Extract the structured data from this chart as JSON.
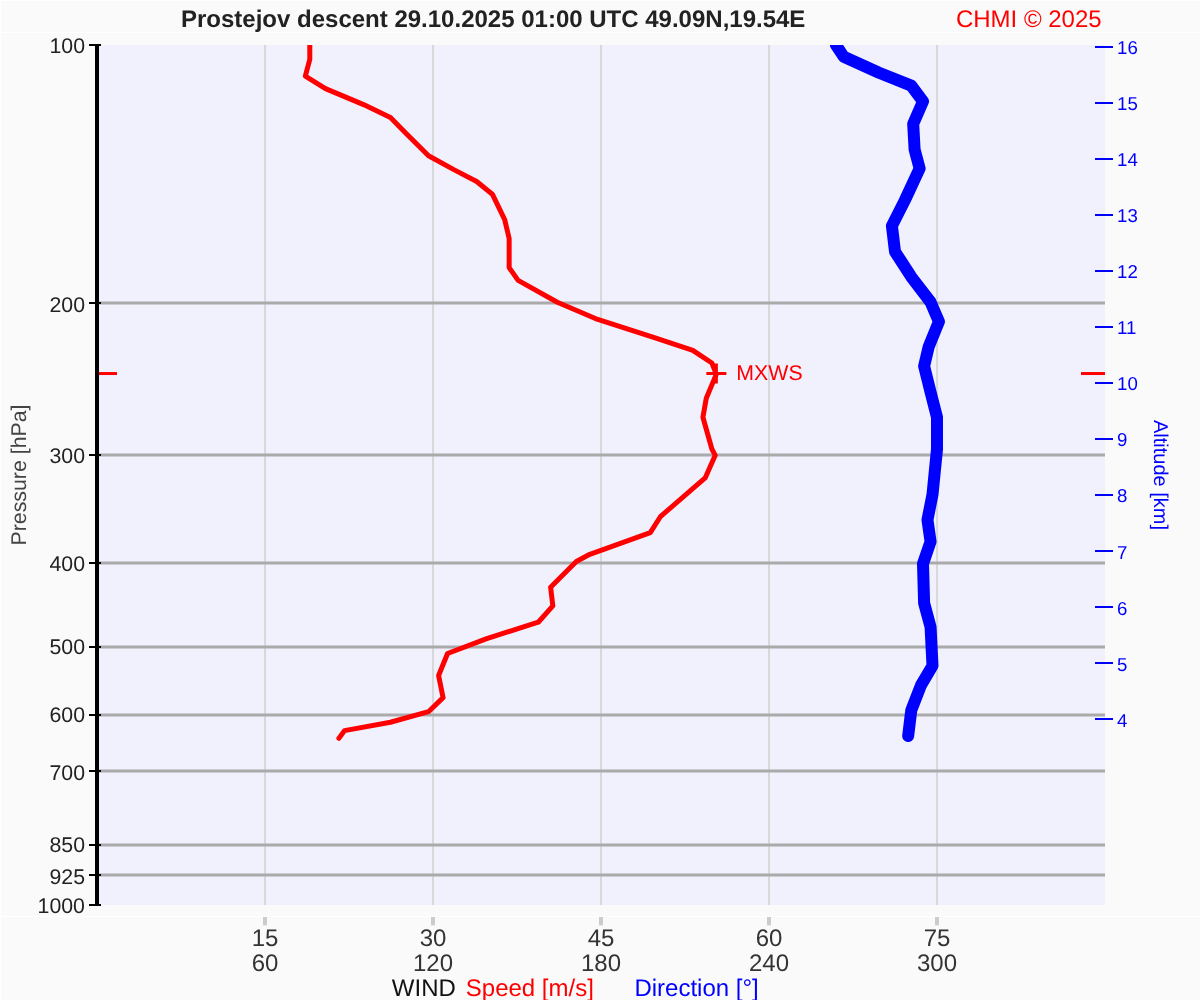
{
  "chart_data": {
    "type": "line",
    "title": "Prostejov   descent   29.10.2025 01:00 UTC   49.09N,19.54E",
    "xlabel": "WIND",
    "ylabel": "Pressure [hPa]",
    "y2label": "Altitude [km]",
    "annotations": [
      "CHMI © 2025",
      {
        "text": "MXWS",
        "x": 55.3,
        "y": 241
      }
    ],
    "log": "y",
    "grid": true,
    "line_style": "solid",
    "marker": "none",
    "xlim": [
      0,
      90
    ],
    "xticks": [
      15,
      30,
      45,
      60,
      75
    ],
    "x2lim": [
      0,
      360
    ],
    "x2ticks": [
      60,
      120,
      180,
      240,
      300
    ],
    "ylim": [
      1000,
      100
    ],
    "yticks": [
      100,
      200,
      300,
      400,
      500,
      600,
      700,
      850,
      925,
      1000
    ],
    "y2lim": [
      0.7,
      16.03
    ],
    "y2ticks": [
      4,
      5,
      6,
      7,
      8,
      9,
      10,
      11,
      12,
      13,
      14,
      15,
      16
    ],
    "series": [
      {
        "name": "Speed [m/s]",
        "color": "#ff0000",
        "x": [
          19.0,
          19.0,
          18.6,
          20.4,
          23.8,
          26.2,
          27.6,
          29.6,
          31.9,
          33.9,
          35.3,
          36.4,
          36.8,
          36.8,
          37.6,
          41.1,
          44.5,
          49.7,
          53.2,
          54.9,
          55.3,
          54.4,
          54.1,
          54.9,
          55.2,
          54.3,
          52.6,
          50.3,
          49.4,
          46.3,
          44.0,
          42.8,
          40.5,
          40.7,
          39.4,
          34.8,
          31.3,
          30.5,
          30.9,
          29.6,
          26.2,
          22.1,
          21.6
        ],
        "values": [
          100,
          103.9,
          108.7,
          112.4,
          117.3,
          121.4,
          126.7,
          134.5,
          139.7,
          144.1,
          149.1,
          159.6,
          167.9,
          181.5,
          187.8,
          199.1,
          208,
          218.8,
          226.5,
          234.3,
          241.4,
          257.5,
          270.9,
          295,
          300,
          318.7,
          333,
          353.6,
          369,
          381.6,
          391,
          398.6,
          427,
          449,
          469,
          490,
          510,
          541,
          574,
          596,
          613,
          627,
          640
        ]
      },
      {
        "name": "Direction [°]",
        "color": "#0000ff",
        "axis": "x2",
        "x": [
          263.9,
          266.7,
          279.3,
          290.8,
          295.0,
          291.5,
          292.0,
          293.8,
          288.5,
          283.9,
          285.0,
          290.8,
          297.7,
          300.7,
          297.0,
          295.4,
          297.7,
          300.0,
          300.0,
          298.4,
          296.6,
          297.7,
          295.0,
          295.4,
          297.7,
          298.4,
          294.3,
          290.8,
          289.7
        ],
        "values": [
          100,
          103.2,
          107.7,
          111.5,
          116.3,
          123.5,
          132.3,
          139.2,
          151.6,
          162.3,
          173.9,
          186,
          199,
          209.7,
          224.5,
          236.3,
          253.3,
          271,
          295,
          333,
          356.6,
          378,
          401,
          445.7,
          475,
          527,
          555,
          594,
          636
        ]
      }
    ]
  }
}
